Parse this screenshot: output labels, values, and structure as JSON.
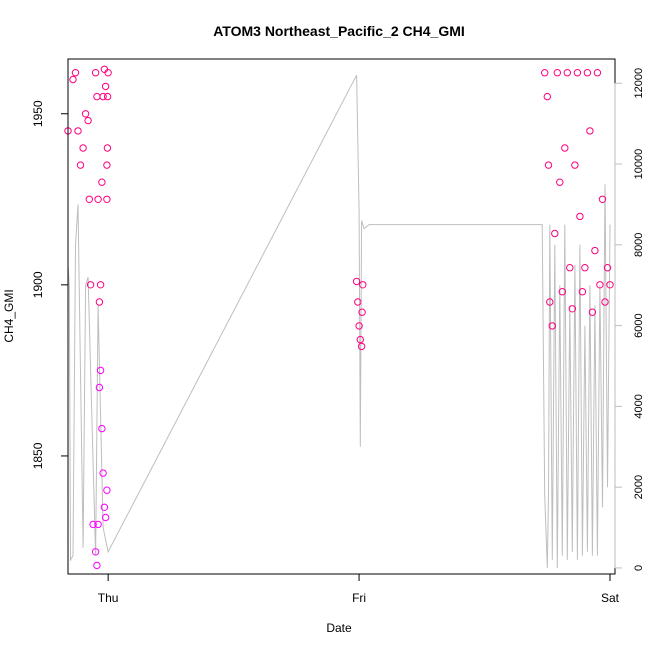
{
  "chart_data": {
    "type": "scatter",
    "title": "ATOM3 Northeast_Pacific_2 CH4_GMI",
    "xlabel": "Date",
    "ylabel": "CH4_GMI",
    "x_tick_labels": [
      "Thu",
      "Fri",
      "Sat"
    ],
    "x_ticks": [
      1,
      2,
      3
    ],
    "xlim": [
      0.84,
      3.02
    ],
    "ylim": [
      1815.5,
      1966
    ],
    "y_tick_labels": [
      "1850",
      "1900",
      "1950"
    ],
    "y_ticks": [
      1850,
      1900,
      1950
    ],
    "right_axis": {
      "ylim": [
        -150,
        12600
      ],
      "ticks": [
        0,
        2000,
        4000,
        6000,
        8000,
        10000,
        12000
      ],
      "tick_labels": [
        "0",
        "2000",
        "4000",
        "6000",
        "8000",
        "10000",
        "12000"
      ],
      "color": "#bebebe"
    },
    "grid": false,
    "colors": {
      "ch4_low": "#ff00ff",
      "ch4_high": "#ff0080",
      "altitude_line": "#bebebe"
    },
    "series": [
      {
        "series_type": "points",
        "segments": [
          {
            "x": [
              0.84,
              0.86,
              0.87,
              0.88,
              0.89,
              0.9,
              0.91,
              0.92,
              0.925,
              0.93,
              0.94,
              0.95,
              0.955,
              0.96,
              0.965,
              0.97,
              0.975,
              0.98,
              0.985,
              0.99,
              0.995
            ],
            "y": [
              1945,
              1960,
              1962,
              1945,
              1935,
              1940,
              1950,
              1948,
              1925,
              1900,
              1830,
              1822,
              1818,
              1830,
              1870,
              1900,
              1930,
              1955,
              1963,
              1958,
              1935
            ]
          },
          {
            "x": [
              0.95,
              0.955,
              0.96,
              0.965,
              0.97,
              0.975,
              0.98,
              0.985,
              0.99,
              0.995
            ],
            "y": [
              1962,
              1955,
              1925,
              1895,
              1875,
              1858,
              1845,
              1835,
              1832,
              1840
            ]
          },
          {
            "x": [
              0.995,
              0.997,
              0.998,
              1.0
            ],
            "y": [
              1925,
              1940,
              1955,
              1962
            ]
          },
          {
            "x": [
              1.99,
              1.995,
              2.0,
              2.005,
              2.01,
              2.012,
              2.015
            ],
            "y": [
              1901,
              1895,
              1888,
              1884,
              1882,
              1892,
              1900
            ]
          },
          {
            "x": [
              2.74,
              2.75,
              2.755,
              2.76,
              2.77,
              2.78,
              2.79,
              2.8,
              2.81,
              2.82,
              2.83,
              2.84,
              2.85,
              2.86,
              2.87,
              2.88,
              2.89,
              2.9,
              2.91,
              2.92,
              2.93,
              2.94,
              2.95,
              2.96,
              2.97,
              2.98,
              2.99,
              3.0
            ],
            "y": [
              1962,
              1955,
              1935,
              1895,
              1888,
              1915,
              1962,
              1930,
              1898,
              1940,
              1962,
              1905,
              1893,
              1935,
              1962,
              1920,
              1898,
              1905,
              1962,
              1945,
              1892,
              1910,
              1962,
              1900,
              1925,
              1895,
              1905,
              1900
            ]
          }
        ]
      },
      {
        "series_type": "altitude_line",
        "x": [
          0.84,
          0.845,
          0.85,
          0.86,
          0.87,
          0.88,
          0.9,
          0.91,
          0.92,
          0.95,
          0.96,
          0.98,
          0.99,
          1.0,
          1.99,
          2.0,
          2.005,
          2.01,
          2.02,
          2.04,
          2.73,
          2.74,
          2.75,
          2.755,
          2.76,
          2.77,
          2.78,
          2.79,
          2.8,
          2.81,
          2.82,
          2.83,
          2.84,
          2.85,
          2.86,
          2.87,
          2.88,
          2.89,
          2.9,
          2.91,
          2.92,
          2.93,
          2.94,
          2.95,
          2.96,
          2.97,
          2.98,
          2.99,
          3.0
        ],
        "y": [
          7500,
          7000,
          200,
          300,
          8000,
          9000,
          500,
          7000,
          7200,
          300,
          6500,
          1000,
          700,
          400,
          12200,
          8800,
          3000,
          8600,
          8400,
          8500,
          8500,
          1800,
          0,
          1800,
          8500,
          200,
          8000,
          0,
          7000,
          300,
          8500,
          200,
          6500,
          400,
          7500,
          200,
          8000,
          300,
          6000,
          400,
          7000,
          300,
          6500,
          300,
          7000,
          1500,
          9500,
          2000,
          8500
        ]
      }
    ]
  }
}
